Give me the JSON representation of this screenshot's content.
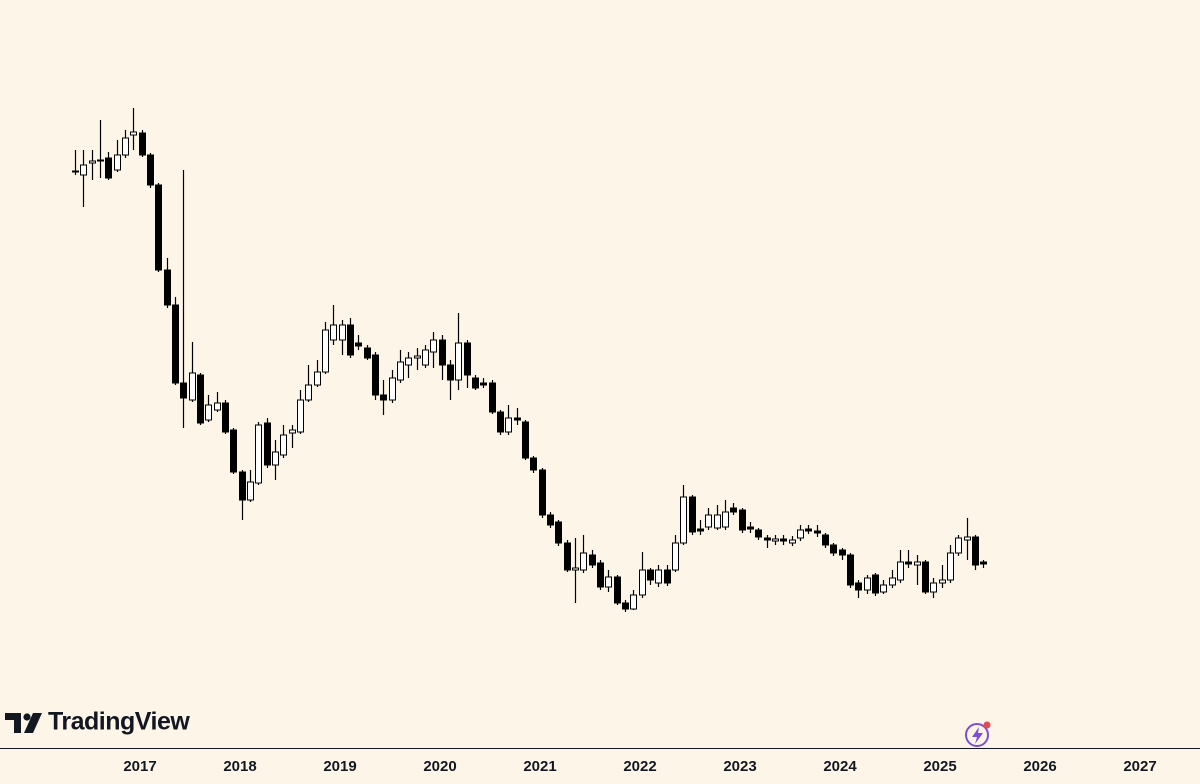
{
  "chart_data": {
    "type": "candlestick",
    "watermark": "TradingView",
    "x": [
      2016.35,
      2016.43,
      2016.52,
      2016.6,
      2016.68,
      2016.77,
      2016.85,
      2016.93,
      2017.02,
      2017.1,
      2017.18,
      2017.27,
      2017.35,
      2017.43,
      2017.52,
      2017.6,
      2017.68,
      2017.77,
      2017.85,
      2017.93,
      2018.02,
      2018.1,
      2018.18,
      2018.27,
      2018.35,
      2018.43,
      2018.52,
      2018.6,
      2018.68,
      2018.77,
      2018.85,
      2018.93,
      2019.02,
      2019.1,
      2019.18,
      2019.27,
      2019.35,
      2019.43,
      2019.52,
      2019.6,
      2019.68,
      2019.77,
      2019.85,
      2019.93,
      2020.02,
      2020.1,
      2020.18,
      2020.27,
      2020.35,
      2020.43,
      2020.52,
      2020.6,
      2020.68,
      2020.77,
      2020.85,
      2020.93,
      2021.02,
      2021.1,
      2021.18,
      2021.27,
      2021.35,
      2021.43,
      2021.52,
      2021.6,
      2021.68,
      2021.77,
      2021.85,
      2021.93,
      2022.02,
      2022.1,
      2022.18,
      2022.27,
      2022.35,
      2022.43,
      2022.52,
      2022.6,
      2022.68,
      2022.77,
      2022.85,
      2022.93,
      2023.02,
      2023.1,
      2023.18,
      2023.27,
      2023.35,
      2023.43,
      2023.52,
      2023.6,
      2023.68,
      2023.77,
      2023.85,
      2023.93,
      2024.02,
      2024.1,
      2024.18,
      2024.27,
      2024.35,
      2024.43,
      2024.52,
      2024.6,
      2024.68,
      2024.77,
      2024.85,
      2024.93,
      2025.02,
      2025.1,
      2025.18,
      2025.27,
      2025.35,
      2025.43
    ],
    "open": [
      578,
      575,
      587,
      589,
      592,
      580,
      595,
      615,
      617,
      595,
      565,
      480,
      445,
      367,
      350,
      375,
      330,
      340,
      347,
      320,
      278,
      250,
      267,
      327,
      285,
      295,
      317,
      318,
      350,
      365,
      378,
      410,
      410,
      425,
      407,
      402,
      395,
      355,
      350,
      370,
      385,
      392,
      385,
      398,
      410,
      385,
      370,
      407,
      372,
      367,
      367,
      338,
      318,
      332,
      328,
      292,
      280,
      235,
      228,
      207,
      180,
      180,
      195,
      187,
      163,
      173,
      147,
      141,
      155,
      180,
      167,
      180,
      180,
      207,
      253,
      221,
      223,
      222,
      223,
      242,
      240,
      223,
      220,
      212,
      209,
      211,
      207,
      212,
      221,
      219,
      215,
      205,
      200,
      195,
      167,
      160,
      175,
      158,
      165,
      170,
      188,
      185,
      188,
      158,
      167,
      170,
      197,
      210,
      213,
      188
    ],
    "high": [
      600,
      600,
      600,
      630,
      598,
      610,
      620,
      642,
      620,
      597,
      567,
      492,
      453,
      580,
      408,
      377,
      355,
      358,
      350,
      322,
      280,
      280,
      328,
      332,
      310,
      325,
      325,
      360,
      385,
      390,
      428,
      445,
      430,
      432,
      415,
      405,
      398,
      370,
      380,
      400,
      398,
      402,
      405,
      418,
      415,
      390,
      437,
      410,
      375,
      372,
      370,
      340,
      345,
      342,
      330,
      294,
      282,
      238,
      230,
      210,
      212,
      215,
      200,
      190,
      180,
      175,
      150,
      160,
      198,
      182,
      185,
      185,
      215,
      265,
      255,
      230,
      242,
      245,
      250,
      247,
      242,
      228,
      222,
      215,
      215,
      215,
      214,
      225,
      225,
      225,
      217,
      207,
      202,
      197,
      170,
      175,
      177,
      170,
      180,
      200,
      200,
      195,
      190,
      172,
      185,
      205,
      215,
      232,
      215,
      190
    ],
    "low": [
      575,
      543,
      570,
      572,
      570,
      578,
      592,
      600,
      593,
      562,
      478,
      442,
      365,
      322,
      348,
      325,
      328,
      338,
      316,
      276,
      230,
      248,
      265,
      282,
      270,
      292,
      302,
      316,
      348,
      363,
      376,
      405,
      395,
      392,
      400,
      390,
      350,
      335,
      347,
      367,
      372,
      380,
      382,
      382,
      370,
      350,
      360,
      362,
      360,
      362,
      336,
      315,
      315,
      325,
      290,
      277,
      232,
      222,
      204,
      178,
      147,
      177,
      182,
      160,
      158,
      145,
      138,
      140,
      152,
      165,
      163,
      164,
      178,
      205,
      215,
      215,
      220,
      220,
      220,
      235,
      217,
      217,
      210,
      202,
      205,
      205,
      204,
      209,
      216,
      213,
      202,
      194,
      190,
      162,
      152,
      156,
      154,
      156,
      162,
      167,
      182,
      165,
      156,
      152,
      162,
      167,
      194,
      190,
      180,
      182
    ],
    "close": [
      579,
      585,
      589,
      590,
      572,
      595,
      612,
      618,
      595,
      565,
      480,
      445,
      367,
      352,
      377,
      327,
      345,
      347,
      318,
      278,
      250,
      268,
      325,
      285,
      298,
      315,
      320,
      350,
      365,
      378,
      420,
      425,
      425,
      395,
      404,
      392,
      355,
      350,
      372,
      388,
      392,
      394,
      400,
      410,
      385,
      370,
      407,
      375,
      362,
      365,
      338,
      318,
      332,
      330,
      292,
      280,
      235,
      225,
      207,
      180,
      182,
      197,
      185,
      163,
      173,
      147,
      141,
      155,
      180,
      170,
      180,
      167,
      207,
      253,
      218,
      219,
      235,
      235,
      238,
      238,
      220,
      221,
      213,
      210,
      211,
      209,
      210,
      220,
      219,
      217,
      205,
      197,
      195,
      165,
      160,
      172,
      157,
      165,
      172,
      188,
      186,
      188,
      158,
      167,
      170,
      197,
      212,
      213,
      185,
      186
    ],
    "up_color": "#ffffff",
    "down_color": "#000000",
    "xlim": [
      2015.6,
      2027.6
    ],
    "ylim": [
      0,
      750
    ],
    "xticks": [
      2017,
      2018,
      2019,
      2020,
      2021,
      2022,
      2023,
      2024,
      2025,
      2026,
      2027
    ]
  }
}
